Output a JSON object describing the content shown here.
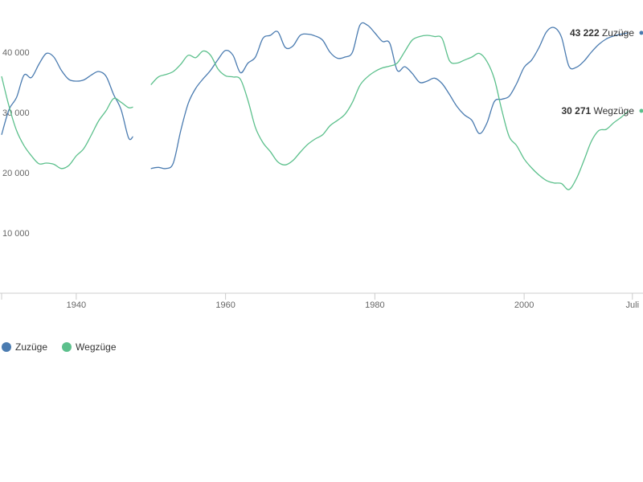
{
  "chart_data": {
    "type": "line",
    "x_ticks": [
      "1940",
      "1960",
      "1980",
      "2000",
      "Juli"
    ],
    "y_ticks": [
      "10 000",
      "20 000",
      "30 000",
      "40 000"
    ],
    "ylim": [
      0,
      46000
    ],
    "xlim": [
      1930,
      2015.6
    ],
    "gap": [
      1947.6,
      1950
    ],
    "grid": false,
    "legend_position": "bottom-left",
    "series": [
      {
        "name": "Zuzüge",
        "color": "#4a7bb0",
        "end_value": "43 222",
        "end_label": "Zuzüge",
        "points": [
          [
            1930,
            26300
          ],
          [
            1931,
            30500
          ],
          [
            1932,
            32500
          ],
          [
            1933,
            36200
          ],
          [
            1934,
            35800
          ],
          [
            1935,
            38000
          ],
          [
            1936,
            39800
          ],
          [
            1937,
            39200
          ],
          [
            1938,
            37000
          ],
          [
            1939,
            35500
          ],
          [
            1940,
            35200
          ],
          [
            1941,
            35400
          ],
          [
            1942,
            36200
          ],
          [
            1943,
            36800
          ],
          [
            1944,
            36000
          ],
          [
            1945,
            33000
          ],
          [
            1946,
            30500
          ],
          [
            1947,
            25800
          ],
          [
            1947.6,
            26000
          ],
          [
            1950,
            20700
          ],
          [
            1951,
            20900
          ],
          [
            1952,
            20700
          ],
          [
            1953,
            21600
          ],
          [
            1954,
            27000
          ],
          [
            1955,
            31500
          ],
          [
            1956,
            34000
          ],
          [
            1957,
            35600
          ],
          [
            1958,
            37000
          ],
          [
            1959,
            38800
          ],
          [
            1960,
            40300
          ],
          [
            1961,
            39500
          ],
          [
            1962,
            36600
          ],
          [
            1963,
            38200
          ],
          [
            1964,
            39200
          ],
          [
            1965,
            42300
          ],
          [
            1966,
            42800
          ],
          [
            1967,
            43400
          ],
          [
            1968,
            40800
          ],
          [
            1969,
            41000
          ],
          [
            1970,
            42800
          ],
          [
            1971,
            43000
          ],
          [
            1972,
            42700
          ],
          [
            1973,
            42000
          ],
          [
            1974,
            40000
          ],
          [
            1975,
            39000
          ],
          [
            1976,
            39200
          ],
          [
            1977,
            40000
          ],
          [
            1978,
            44500
          ],
          [
            1979,
            44500
          ],
          [
            1980,
            43200
          ],
          [
            1981,
            41800
          ],
          [
            1982,
            41500
          ],
          [
            1983,
            37000
          ],
          [
            1984,
            37600
          ],
          [
            1985,
            36500
          ],
          [
            1986,
            35000
          ],
          [
            1987,
            35200
          ],
          [
            1988,
            35700
          ],
          [
            1989,
            34800
          ],
          [
            1990,
            33000
          ],
          [
            1991,
            31000
          ],
          [
            1992,
            29600
          ],
          [
            1993,
            28700
          ],
          [
            1994,
            26500
          ],
          [
            1995,
            28200
          ],
          [
            1996,
            31800
          ],
          [
            1997,
            32200
          ],
          [
            1998,
            32700
          ],
          [
            1999,
            34800
          ],
          [
            2000,
            37500
          ],
          [
            2001,
            38700
          ],
          [
            2002,
            40800
          ],
          [
            2003,
            43400
          ],
          [
            2004,
            44100
          ],
          [
            2005,
            42500
          ],
          [
            2006,
            37700
          ],
          [
            2007,
            37500
          ],
          [
            2008,
            38500
          ],
          [
            2009,
            40000
          ],
          [
            2010,
            41300
          ],
          [
            2011,
            42200
          ],
          [
            2012,
            42700
          ],
          [
            2013,
            43000
          ],
          [
            2014,
            43222
          ]
        ]
      },
      {
        "name": "Wegzüge",
        "color": "#5cc08c",
        "end_value": "30 271",
        "end_label": "Wegzüge",
        "points": [
          [
            1930,
            36000
          ],
          [
            1931,
            31000
          ],
          [
            1932,
            27000
          ],
          [
            1933,
            24500
          ],
          [
            1934,
            22800
          ],
          [
            1935,
            21500
          ],
          [
            1936,
            21600
          ],
          [
            1937,
            21400
          ],
          [
            1938,
            20700
          ],
          [
            1939,
            21200
          ],
          [
            1940,
            22800
          ],
          [
            1941,
            24000
          ],
          [
            1942,
            26200
          ],
          [
            1943,
            28600
          ],
          [
            1944,
            30300
          ],
          [
            1945,
            32300
          ],
          [
            1946,
            31700
          ],
          [
            1947,
            30800
          ],
          [
            1947.6,
            30900
          ],
          [
            1950,
            34600
          ],
          [
            1951,
            35900
          ],
          [
            1952,
            36300
          ],
          [
            1953,
            36800
          ],
          [
            1954,
            38000
          ],
          [
            1955,
            39500
          ],
          [
            1956,
            39100
          ],
          [
            1957,
            40200
          ],
          [
            1958,
            39500
          ],
          [
            1959,
            37200
          ],
          [
            1960,
            36100
          ],
          [
            1961,
            35900
          ],
          [
            1962,
            35500
          ],
          [
            1963,
            32000
          ],
          [
            1964,
            27500
          ],
          [
            1965,
            25000
          ],
          [
            1966,
            23500
          ],
          [
            1967,
            21800
          ],
          [
            1968,
            21300
          ],
          [
            1969,
            22000
          ],
          [
            1970,
            23400
          ],
          [
            1971,
            24700
          ],
          [
            1972,
            25600
          ],
          [
            1973,
            26300
          ],
          [
            1974,
            27800
          ],
          [
            1975,
            28700
          ],
          [
            1976,
            29700
          ],
          [
            1977,
            31700
          ],
          [
            1978,
            34500
          ],
          [
            1979,
            35900
          ],
          [
            1980,
            36800
          ],
          [
            1981,
            37400
          ],
          [
            1982,
            37700
          ],
          [
            1983,
            38200
          ],
          [
            1984,
            40100
          ],
          [
            1985,
            42000
          ],
          [
            1986,
            42600
          ],
          [
            1987,
            42800
          ],
          [
            1988,
            42600
          ],
          [
            1989,
            42300
          ],
          [
            1990,
            38600
          ],
          [
            1991,
            38200
          ],
          [
            1992,
            38700
          ],
          [
            1993,
            39200
          ],
          [
            1994,
            39800
          ],
          [
            1995,
            38500
          ],
          [
            1996,
            35600
          ],
          [
            1997,
            30400
          ],
          [
            1998,
            26000
          ],
          [
            1999,
            24500
          ],
          [
            2000,
            22300
          ],
          [
            2001,
            20800
          ],
          [
            2002,
            19600
          ],
          [
            2003,
            18700
          ],
          [
            2004,
            18300
          ],
          [
            2005,
            18200
          ],
          [
            2006,
            17200
          ],
          [
            2007,
            19000
          ],
          [
            2008,
            22000
          ],
          [
            2009,
            25200
          ],
          [
            2010,
            27000
          ],
          [
            2011,
            27200
          ],
          [
            2012,
            28300
          ],
          [
            2013,
            29200
          ],
          [
            2014,
            30271
          ]
        ]
      }
    ]
  }
}
